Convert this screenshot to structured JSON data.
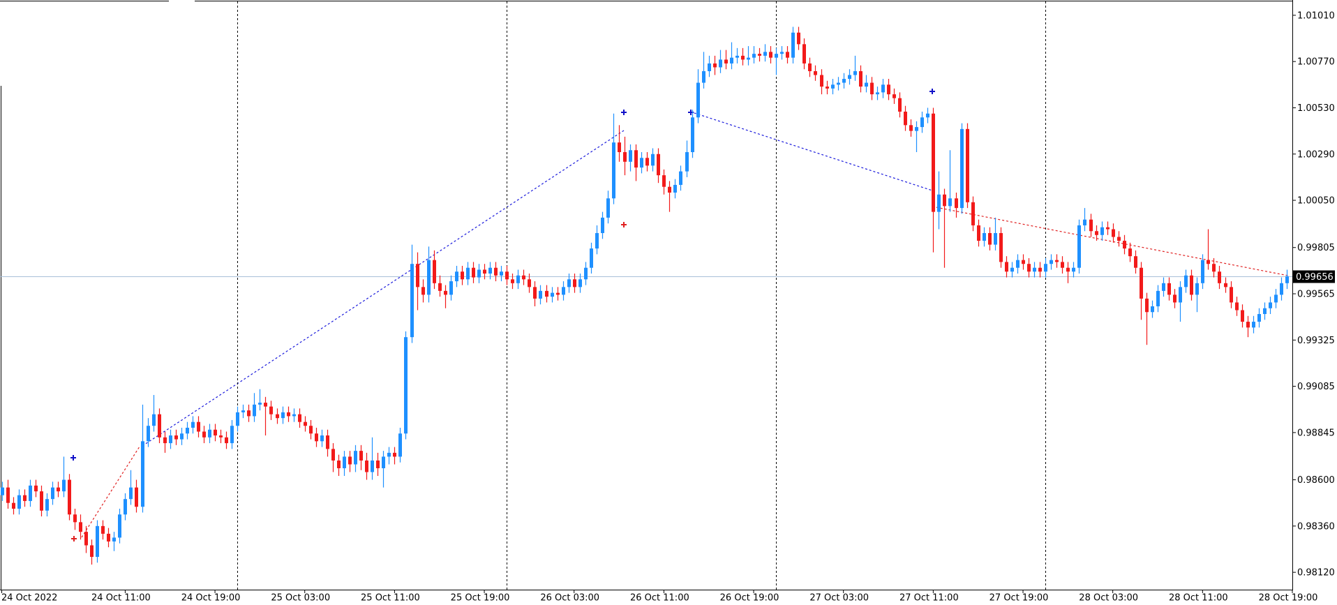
{
  "chart_data": {
    "type": "candlestick",
    "open": [
      0.9852,
      0.9856,
      0.9848,
      0.9845,
      0.9852,
      0.9849,
      0.9857,
      0.9854,
      0.9844,
      0.985,
      0.9856,
      0.9854,
      0.986,
      0.9842,
      0.9838,
      0.9833,
      0.9826,
      0.982,
      0.9836,
      0.9832,
      0.9828,
      0.983,
      0.9842,
      0.985,
      0.9856,
      0.9846,
      0.988,
      0.9888,
      0.9894,
      0.9882,
      0.9879,
      0.9883,
      0.9881,
      0.9884,
      0.9887,
      0.989,
      0.9885,
      0.9882,
      0.9886,
      0.9883,
      0.9882,
      0.9879,
      0.9888,
      0.9895,
      0.9896,
      0.9893,
      0.9899,
      0.99,
      0.9898,
      0.9894,
      0.9892,
      0.9895,
      0.9893,
      0.9894,
      0.989,
      0.9888,
      0.9884,
      0.988,
      0.9883,
      0.9876,
      0.987,
      0.9866,
      0.9872,
      0.9868,
      0.9875,
      0.987,
      0.9864,
      0.987,
      0.9866,
      0.9872,
      0.9874,
      0.9872,
      0.9884,
      0.9934,
      0.9972,
      0.996,
      0.9956,
      0.9974,
      0.9962,
      0.9958,
      0.9956,
      0.9963,
      0.9968,
      0.9964,
      0.997,
      0.9965,
      0.9969,
      0.9967,
      0.997,
      0.9966,
      0.9968,
      0.9964,
      0.9962,
      0.9966,
      0.9964,
      0.996,
      0.9954,
      0.9958,
      0.9955,
      0.9957,
      0.9956,
      0.996,
      0.9964,
      0.996,
      0.9964,
      0.997,
      0.998,
      0.9988,
      0.9996,
      1.0006,
      1.0035,
      1.003,
      1.0025,
      1.0031,
      1.0022,
      1.0027,
      1.0023,
      1.0029,
      1.0018,
      1.0012,
      1.0009,
      1.0013,
      1.002,
      1.003,
      1.0048,
      1.0066,
      1.0072,
      1.0076,
      1.0074,
      1.0078,
      1.0076,
      1.0079,
      1.008,
      1.0078,
      1.0079,
      1.0081,
      1.008,
      1.0082,
      1.0079,
      1.0081,
      1.0082,
      1.0079,
      1.0092,
      1.0086,
      1.0076,
      1.0072,
      1.007,
      1.0064,
      1.0063,
      1.0065,
      1.0066,
      1.0068,
      1.007,
      1.0072,
      1.0064,
      1.0066,
      1.006,
      1.0061,
      1.0065,
      1.006,
      1.0058,
      1.0051,
      1.0044,
      1.0041,
      1.0043,
      1.0048,
      1.005,
      0.9999,
      1.0008,
      1.0002,
      1.0006,
      1.0001,
      1.0042,
      1.0004,
      0.9992,
      0.9984,
      0.9988,
      0.9982,
      0.9988,
      0.9973,
      0.9968,
      0.997,
      0.9974,
      0.9972,
      0.9968,
      0.997,
      0.9968,
      0.9972,
      0.9974,
      0.9973,
      0.997,
      0.9968,
      0.997,
      0.9992,
      0.9995,
      0.9989,
      0.9987,
      0.9991,
      0.999,
      0.9986,
      0.9984,
      0.998,
      0.9976,
      0.997,
      0.9954,
      0.9947,
      0.995,
      0.9958,
      0.9962,
      0.9956,
      0.9952,
      0.996,
      0.9966,
      0.9956,
      0.9962,
      0.9974,
      0.9972,
      0.9968,
      0.9962,
      0.996,
      0.9952,
      0.9948,
      0.9942,
      0.9939,
      0.9942,
      0.9946,
      0.9949,
      0.9952,
      0.9956,
      0.9962
    ],
    "high": [
      0.9859,
      0.986,
      0.9851,
      0.9855,
      0.9855,
      0.986,
      0.986,
      0.9857,
      0.9853,
      0.9859,
      0.9859,
      0.9872,
      0.9863,
      0.9845,
      0.9842,
      0.9836,
      0.9829,
      0.9839,
      0.9839,
      0.9835,
      0.9833,
      0.9845,
      0.9853,
      0.9865,
      0.986,
      0.9899,
      0.9892,
      0.9904,
      0.9897,
      0.9885,
      0.9886,
      0.9886,
      0.9887,
      0.989,
      0.9893,
      0.9893,
      0.9888,
      0.9889,
      0.9889,
      0.9886,
      0.9885,
      0.9891,
      0.9898,
      0.9899,
      0.9899,
      0.9905,
      0.9907,
      0.9903,
      0.9901,
      0.9897,
      0.9898,
      0.9898,
      0.9897,
      0.9897,
      0.9893,
      0.9891,
      0.9887,
      0.9886,
      0.9886,
      0.9879,
      0.9873,
      0.9875,
      0.9875,
      0.9878,
      0.9878,
      0.9874,
      0.9882,
      0.9874,
      0.9875,
      0.9877,
      0.9877,
      0.9887,
      0.9937,
      0.9982,
      0.9978,
      0.9964,
      0.9981,
      0.9979,
      0.9966,
      0.9961,
      0.9966,
      0.9971,
      0.9971,
      0.9973,
      0.9973,
      0.9972,
      0.9972,
      0.9973,
      0.9973,
      0.9971,
      0.9971,
      0.9967,
      0.9969,
      0.9969,
      0.9967,
      0.9963,
      0.9961,
      0.9961,
      0.996,
      0.996,
      0.9963,
      0.9967,
      0.9967,
      0.9967,
      0.9973,
      0.9983,
      0.9992,
      0.9999,
      1.001,
      1.005,
      1.0044,
      1.0038,
      1.0034,
      1.0034,
      1.003,
      1.003,
      1.0032,
      1.0032,
      1.0021,
      1.0015,
      1.0016,
      1.0023,
      1.0036,
      1.0052,
      1.0073,
      1.0082,
      1.008,
      1.008,
      1.0083,
      1.0083,
      1.0087,
      1.0084,
      1.0084,
      1.0085,
      1.0085,
      1.0084,
      1.0086,
      1.0085,
      1.0084,
      1.0085,
      1.0085,
      1.0095,
      1.0095,
      1.0089,
      1.0079,
      1.0075,
      1.0073,
      1.0067,
      1.0068,
      1.0069,
      1.0071,
      1.0073,
      1.008,
      1.0075,
      1.007,
      1.0069,
      1.0064,
      1.0068,
      1.0068,
      1.0063,
      1.0061,
      1.0054,
      1.0047,
      1.0046,
      1.0051,
      1.0053,
      1.0053,
      1.002,
      1.0011,
      1.0031,
      1.0009,
      1.0045,
      1.0045,
      1.0007,
      0.9995,
      0.9991,
      0.9991,
      0.9996,
      0.9991,
      0.9976,
      0.9973,
      0.9977,
      0.9977,
      0.9975,
      0.9973,
      0.9973,
      0.9975,
      0.9977,
      0.9977,
      0.9976,
      0.9973,
      0.9973,
      0.9995,
      1.0001,
      0.9998,
      0.9992,
      0.9994,
      0.9994,
      0.9993,
      0.9989,
      0.9987,
      0.9983,
      0.9979,
      0.9973,
      0.9957,
      0.9953,
      0.9961,
      0.9965,
      0.9965,
      0.9959,
      0.9963,
      0.9969,
      0.9969,
      0.9965,
      0.9977,
      0.999,
      0.9975,
      0.9971,
      0.9965,
      0.9963,
      0.9955,
      0.9951,
      0.9945,
      0.9945,
      0.9949,
      0.9952,
      0.9955,
      0.9959,
      0.9965,
      0.9969
    ],
    "low": [
      0.9849,
      0.9845,
      0.9842,
      0.9842,
      0.9846,
      0.9846,
      0.9851,
      0.9841,
      0.9841,
      0.9847,
      0.9851,
      0.9851,
      0.9839,
      0.9834,
      0.9829,
      0.9822,
      0.9816,
      0.9817,
      0.9829,
      0.9825,
      0.9823,
      0.9827,
      0.9839,
      0.9847,
      0.9843,
      0.9843,
      0.9877,
      0.9885,
      0.9879,
      0.9874,
      0.9876,
      0.9878,
      0.9878,
      0.9881,
      0.9884,
      0.9882,
      0.9879,
      0.9879,
      0.988,
      0.9879,
      0.9876,
      0.9876,
      0.9885,
      0.9892,
      0.989,
      0.989,
      0.9896,
      0.9883,
      0.9891,
      0.9889,
      0.9889,
      0.989,
      0.989,
      0.9887,
      0.9885,
      0.9881,
      0.9877,
      0.9877,
      0.9872,
      0.9864,
      0.9862,
      0.9862,
      0.9864,
      0.9864,
      0.9865,
      0.986,
      0.986,
      0.9862,
      0.9856,
      0.9868,
      0.9868,
      0.9869,
      0.9881,
      0.9931,
      0.9948,
      0.9952,
      0.9952,
      0.9959,
      0.9955,
      0.9949,
      0.9953,
      0.996,
      0.9961,
      0.9961,
      0.9962,
      0.9962,
      0.9964,
      0.9964,
      0.9963,
      0.9963,
      0.9961,
      0.9959,
      0.9959,
      0.9961,
      0.9957,
      0.995,
      0.9951,
      0.9952,
      0.9952,
      0.9953,
      0.9953,
      0.9957,
      0.9957,
      0.9957,
      0.9961,
      0.9967,
      0.9977,
      0.9985,
      0.9993,
      1.0003,
      1.0025,
      1.0018,
      1.002,
      1.0015,
      1.0019,
      1.002,
      1.002,
      1.0014,
      1.0008,
      0.9999,
      1.0006,
      1.001,
      1.0017,
      1.0027,
      1.0045,
      1.0063,
      1.0069,
      1.007,
      1.0071,
      1.0073,
      1.0073,
      1.0076,
      1.0075,
      1.0075,
      1.0076,
      1.0077,
      1.0077,
      1.0076,
      1.007,
      1.0078,
      1.0076,
      1.0076,
      1.0083,
      1.0073,
      1.0069,
      1.0067,
      1.006,
      1.006,
      1.006,
      1.0062,
      1.0063,
      1.0065,
      1.0067,
      1.0061,
      1.0061,
      1.0057,
      1.0057,
      1.0058,
      1.0057,
      1.0055,
      1.0048,
      1.0041,
      1.0038,
      1.003,
      1.004,
      1.0045,
      0.9978,
      0.999,
      0.997,
      0.9999,
      0.9996,
      0.9998,
      1.0001,
      0.9989,
      0.9981,
      0.9981,
      0.9979,
      0.9979,
      0.997,
      0.9965,
      0.9965,
      0.9967,
      0.9969,
      0.9965,
      0.9965,
      0.9965,
      0.9965,
      0.9969,
      0.997,
      0.9967,
      0.9962,
      0.9965,
      0.9967,
      0.9989,
      0.9986,
      0.9984,
      0.9984,
      0.9987,
      0.9983,
      0.9981,
      0.9977,
      0.9973,
      0.9967,
      0.9943,
      0.993,
      0.9944,
      0.9947,
      0.9955,
      0.9953,
      0.9949,
      0.9942,
      0.9957,
      0.9953,
      0.9947,
      0.9959,
      0.9969,
      0.9965,
      0.9959,
      0.9957,
      0.9949,
      0.9945,
      0.9939,
      0.9934,
      0.9936,
      0.9939,
      0.9943,
      0.9946,
      0.9949,
      0.9953,
      0.9959
    ],
    "close": [
      0.9856,
      0.9848,
      0.9845,
      0.9852,
      0.9849,
      0.9857,
      0.9854,
      0.9844,
      0.985,
      0.9856,
      0.9854,
      0.986,
      0.9842,
      0.9838,
      0.9833,
      0.9826,
      0.982,
      0.9836,
      0.9832,
      0.9828,
      0.983,
      0.9842,
      0.985,
      0.9856,
      0.9846,
      0.988,
      0.9888,
      0.9894,
      0.9882,
      0.9879,
      0.9883,
      0.9881,
      0.9884,
      0.9887,
      0.989,
      0.9885,
      0.9882,
      0.9886,
      0.9883,
      0.9882,
      0.9879,
      0.9888,
      0.9895,
      0.9896,
      0.9893,
      0.9899,
      0.99,
      0.9898,
      0.9894,
      0.9892,
      0.9895,
      0.9893,
      0.9894,
      0.989,
      0.9888,
      0.9884,
      0.988,
      0.9883,
      0.9876,
      0.987,
      0.9866,
      0.9872,
      0.9868,
      0.9875,
      0.987,
      0.9864,
      0.987,
      0.9866,
      0.9872,
      0.9874,
      0.9872,
      0.9884,
      0.9934,
      0.9972,
      0.996,
      0.9956,
      0.9974,
      0.9962,
      0.9958,
      0.9956,
      0.9963,
      0.9968,
      0.9964,
      0.997,
      0.9965,
      0.9969,
      0.9967,
      0.997,
      0.9966,
      0.9968,
      0.9964,
      0.9962,
      0.9966,
      0.9964,
      0.996,
      0.9954,
      0.9958,
      0.9955,
      0.9957,
      0.9956,
      0.996,
      0.9964,
      0.996,
      0.9964,
      0.997,
      0.998,
      0.9988,
      0.9996,
      1.0006,
      1.0035,
      1.003,
      1.0025,
      1.0031,
      1.0022,
      1.0027,
      1.0023,
      1.0029,
      1.0018,
      1.0012,
      1.0009,
      1.0013,
      1.002,
      1.003,
      1.0048,
      1.0066,
      1.0072,
      1.0076,
      1.0074,
      1.0078,
      1.0076,
      1.0079,
      1.008,
      1.0078,
      1.0079,
      1.0081,
      1.008,
      1.0082,
      1.0079,
      1.0081,
      1.0082,
      1.0079,
      1.0092,
      1.0086,
      1.0076,
      1.0072,
      1.007,
      1.0064,
      1.0063,
      1.0065,
      1.0066,
      1.0068,
      1.007,
      1.0072,
      1.0064,
      1.0066,
      1.006,
      1.0061,
      1.0065,
      1.006,
      1.0058,
      1.0051,
      1.0044,
      1.0041,
      1.0043,
      1.0048,
      1.005,
      0.9999,
      1.0008,
      1.0002,
      1.0006,
      1.0001,
      1.0042,
      1.0004,
      0.9992,
      0.9984,
      0.9988,
      0.9982,
      0.9988,
      0.9973,
      0.9968,
      0.997,
      0.9974,
      0.9972,
      0.9968,
      0.997,
      0.9968,
      0.9972,
      0.9974,
      0.9973,
      0.997,
      0.9968,
      0.997,
      0.9992,
      0.9995,
      0.9989,
      0.9987,
      0.9991,
      0.999,
      0.9986,
      0.9984,
      0.998,
      0.9976,
      0.997,
      0.9954,
      0.9947,
      0.995,
      0.9958,
      0.9962,
      0.9956,
      0.9952,
      0.996,
      0.9966,
      0.9956,
      0.9962,
      0.9974,
      0.9972,
      0.9968,
      0.9962,
      0.996,
      0.9952,
      0.9948,
      0.9942,
      0.9939,
      0.9942,
      0.9946,
      0.9949,
      0.9952,
      0.9956,
      0.9962,
      0.99656
    ],
    "xlim": [
      0,
      230
    ],
    "ylim": [
      0.9803,
      1.01082
    ],
    "xticks": [
      {
        "value": 0,
        "label": "24 Oct 2022"
      },
      {
        "value": 22,
        "label": "24 Oct 11:00"
      },
      {
        "value": 38,
        "label": "24 Oct 19:00"
      },
      {
        "value": 54,
        "label": "25 Oct 03:00"
      },
      {
        "value": 70,
        "label": "25 Oct 11:00"
      },
      {
        "value": 86,
        "label": "25 Oct 19:00"
      },
      {
        "value": 102,
        "label": "26 Oct 03:00"
      },
      {
        "value": 118,
        "label": "26 Oct 11:00"
      },
      {
        "value": 134,
        "label": "26 Oct 19:00"
      },
      {
        "value": 150,
        "label": "27 Oct 03:00"
      },
      {
        "value": 166,
        "label": "27 Oct 11:00"
      },
      {
        "value": 182,
        "label": "27 Oct 19:00"
      },
      {
        "value": 198,
        "label": "28 Oct 03:00"
      },
      {
        "value": 214,
        "label": "28 Oct 11:00"
      },
      {
        "value": 230,
        "label": "28 Oct 19:00"
      }
    ],
    "yticks": [
      {
        "value": 1.0101,
        "label": "1.01010"
      },
      {
        "value": 1.0077,
        "label": "1.00770"
      },
      {
        "value": 1.0053,
        "label": "1.00530"
      },
      {
        "value": 1.0029,
        "label": "1.00290"
      },
      {
        "value": 1.0005,
        "label": "1.00050"
      },
      0.99805,
      0.99565,
      0.99325,
      0.99085,
      0.98845,
      {
        "value": 0.986,
        "label": "0.98600"
      },
      {
        "value": 0.9836,
        "label": "0.98360"
      },
      {
        "value": 0.9812,
        "label": "0.98120"
      }
    ],
    "day_separators": [
      42,
      90,
      138,
      186
    ],
    "current_price": 0.99656,
    "up_color": "#1e90ff",
    "down_color": "#f21a1a"
  }
}
